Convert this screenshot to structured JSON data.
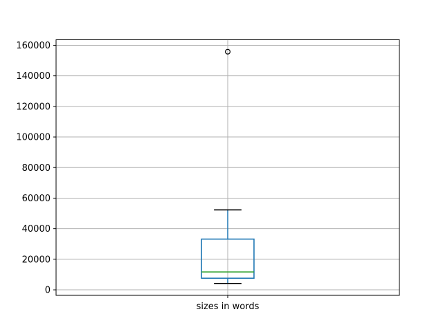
{
  "figure": {
    "background": "#ffffff",
    "title": ""
  },
  "chart_data": {
    "type": "boxplot",
    "title": "",
    "xlabel": "",
    "ylabel": "",
    "categories": [
      "sizes in words"
    ],
    "series": [
      {
        "name": "sizes in words",
        "q1": 7600,
        "median": 11700,
        "q3": 33200,
        "whisker_low": 4200,
        "whisker_high": 52300,
        "outliers": [
          155800
        ]
      }
    ],
    "yticks": [
      0,
      20000,
      40000,
      60000,
      80000,
      100000,
      120000,
      140000,
      160000
    ],
    "ytick_labels": [
      "0",
      "20000",
      "40000",
      "60000",
      "80000",
      "100000",
      "120000",
      "140000",
      "160000"
    ],
    "ylim": [
      -3600,
      163600
    ],
    "xlim": [
      0.5,
      1.5
    ],
    "positions": [
      1
    ],
    "box_width": 0.153,
    "cap_width": 0.08,
    "grid": true,
    "legend": null,
    "colors": {
      "box": "#1f77b4",
      "whisker": "#1f77b4",
      "median": "#2ca02c",
      "cap": "#000000",
      "flier": "#000000",
      "grid": "#b0b0b0",
      "spine": "#000000",
      "text": "#000000",
      "background": "#ffffff"
    }
  }
}
